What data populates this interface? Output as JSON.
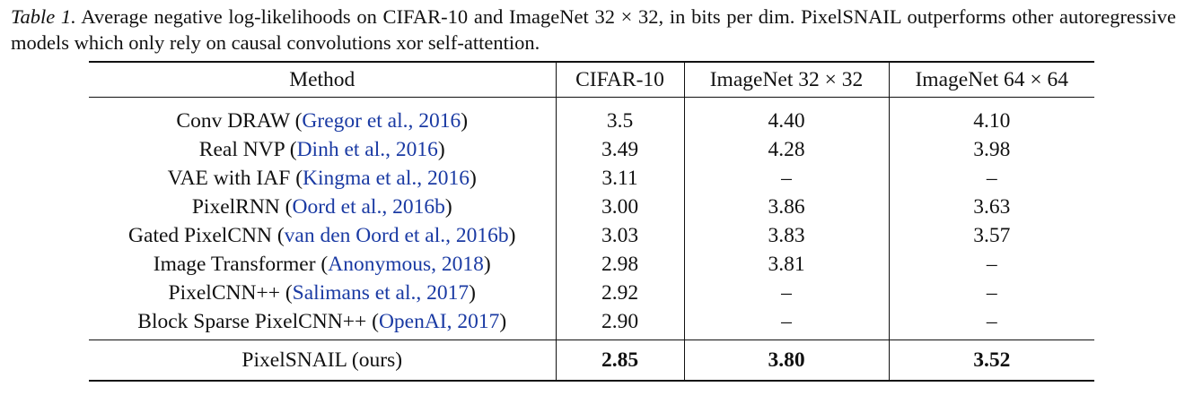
{
  "caption": {
    "label": "Table 1.",
    "text": "Average negative log-likelihoods on CIFAR-10 and ImageNet 32 × 32, in bits per dim.  PixelSNAIL outperforms other autoregressive models which only rely on causal convolutions xor self-attention."
  },
  "table": {
    "headers": [
      "Method",
      "CIFAR-10",
      "ImageNet 32 × 32",
      "ImageNet 64 × 64"
    ],
    "rows": [
      {
        "method": "Conv DRAW",
        "cite": "Gregor et al., 2016",
        "cifar": "3.5",
        "in32": "4.40",
        "in64": "4.10"
      },
      {
        "method": "Real NVP",
        "cite": "Dinh et al., 2016",
        "cifar": "3.49",
        "in32": "4.28",
        "in64": "3.98"
      },
      {
        "method": "VAE with IAF",
        "cite": "Kingma et al., 2016",
        "cifar": "3.11",
        "in32": "–",
        "in64": "–"
      },
      {
        "method": "PixelRNN",
        "cite": "Oord et al., 2016b",
        "cifar": "3.00",
        "in32": "3.86",
        "in64": "3.63"
      },
      {
        "method": "Gated PixelCNN",
        "cite": "van den Oord et al., 2016b",
        "cifar": "3.03",
        "in32": "3.83",
        "in64": "3.57"
      },
      {
        "method": "Image Transformer",
        "cite": "Anonymous, 2018",
        "cifar": "2.98",
        "in32": "3.81",
        "in64": "–"
      },
      {
        "method": "PixelCNN++",
        "cite": "Salimans et al., 2017",
        "cifar": "2.92",
        "in32": "–",
        "in64": "–"
      },
      {
        "method": "Block Sparse PixelCNN++",
        "cite": "OpenAI, 2017",
        "cifar": "2.90",
        "in32": "–",
        "in64": "–"
      }
    ],
    "ours": {
      "method": "PixelSNAIL (ours)",
      "cifar": "2.85",
      "in32": "3.80",
      "in64": "3.52"
    }
  }
}
